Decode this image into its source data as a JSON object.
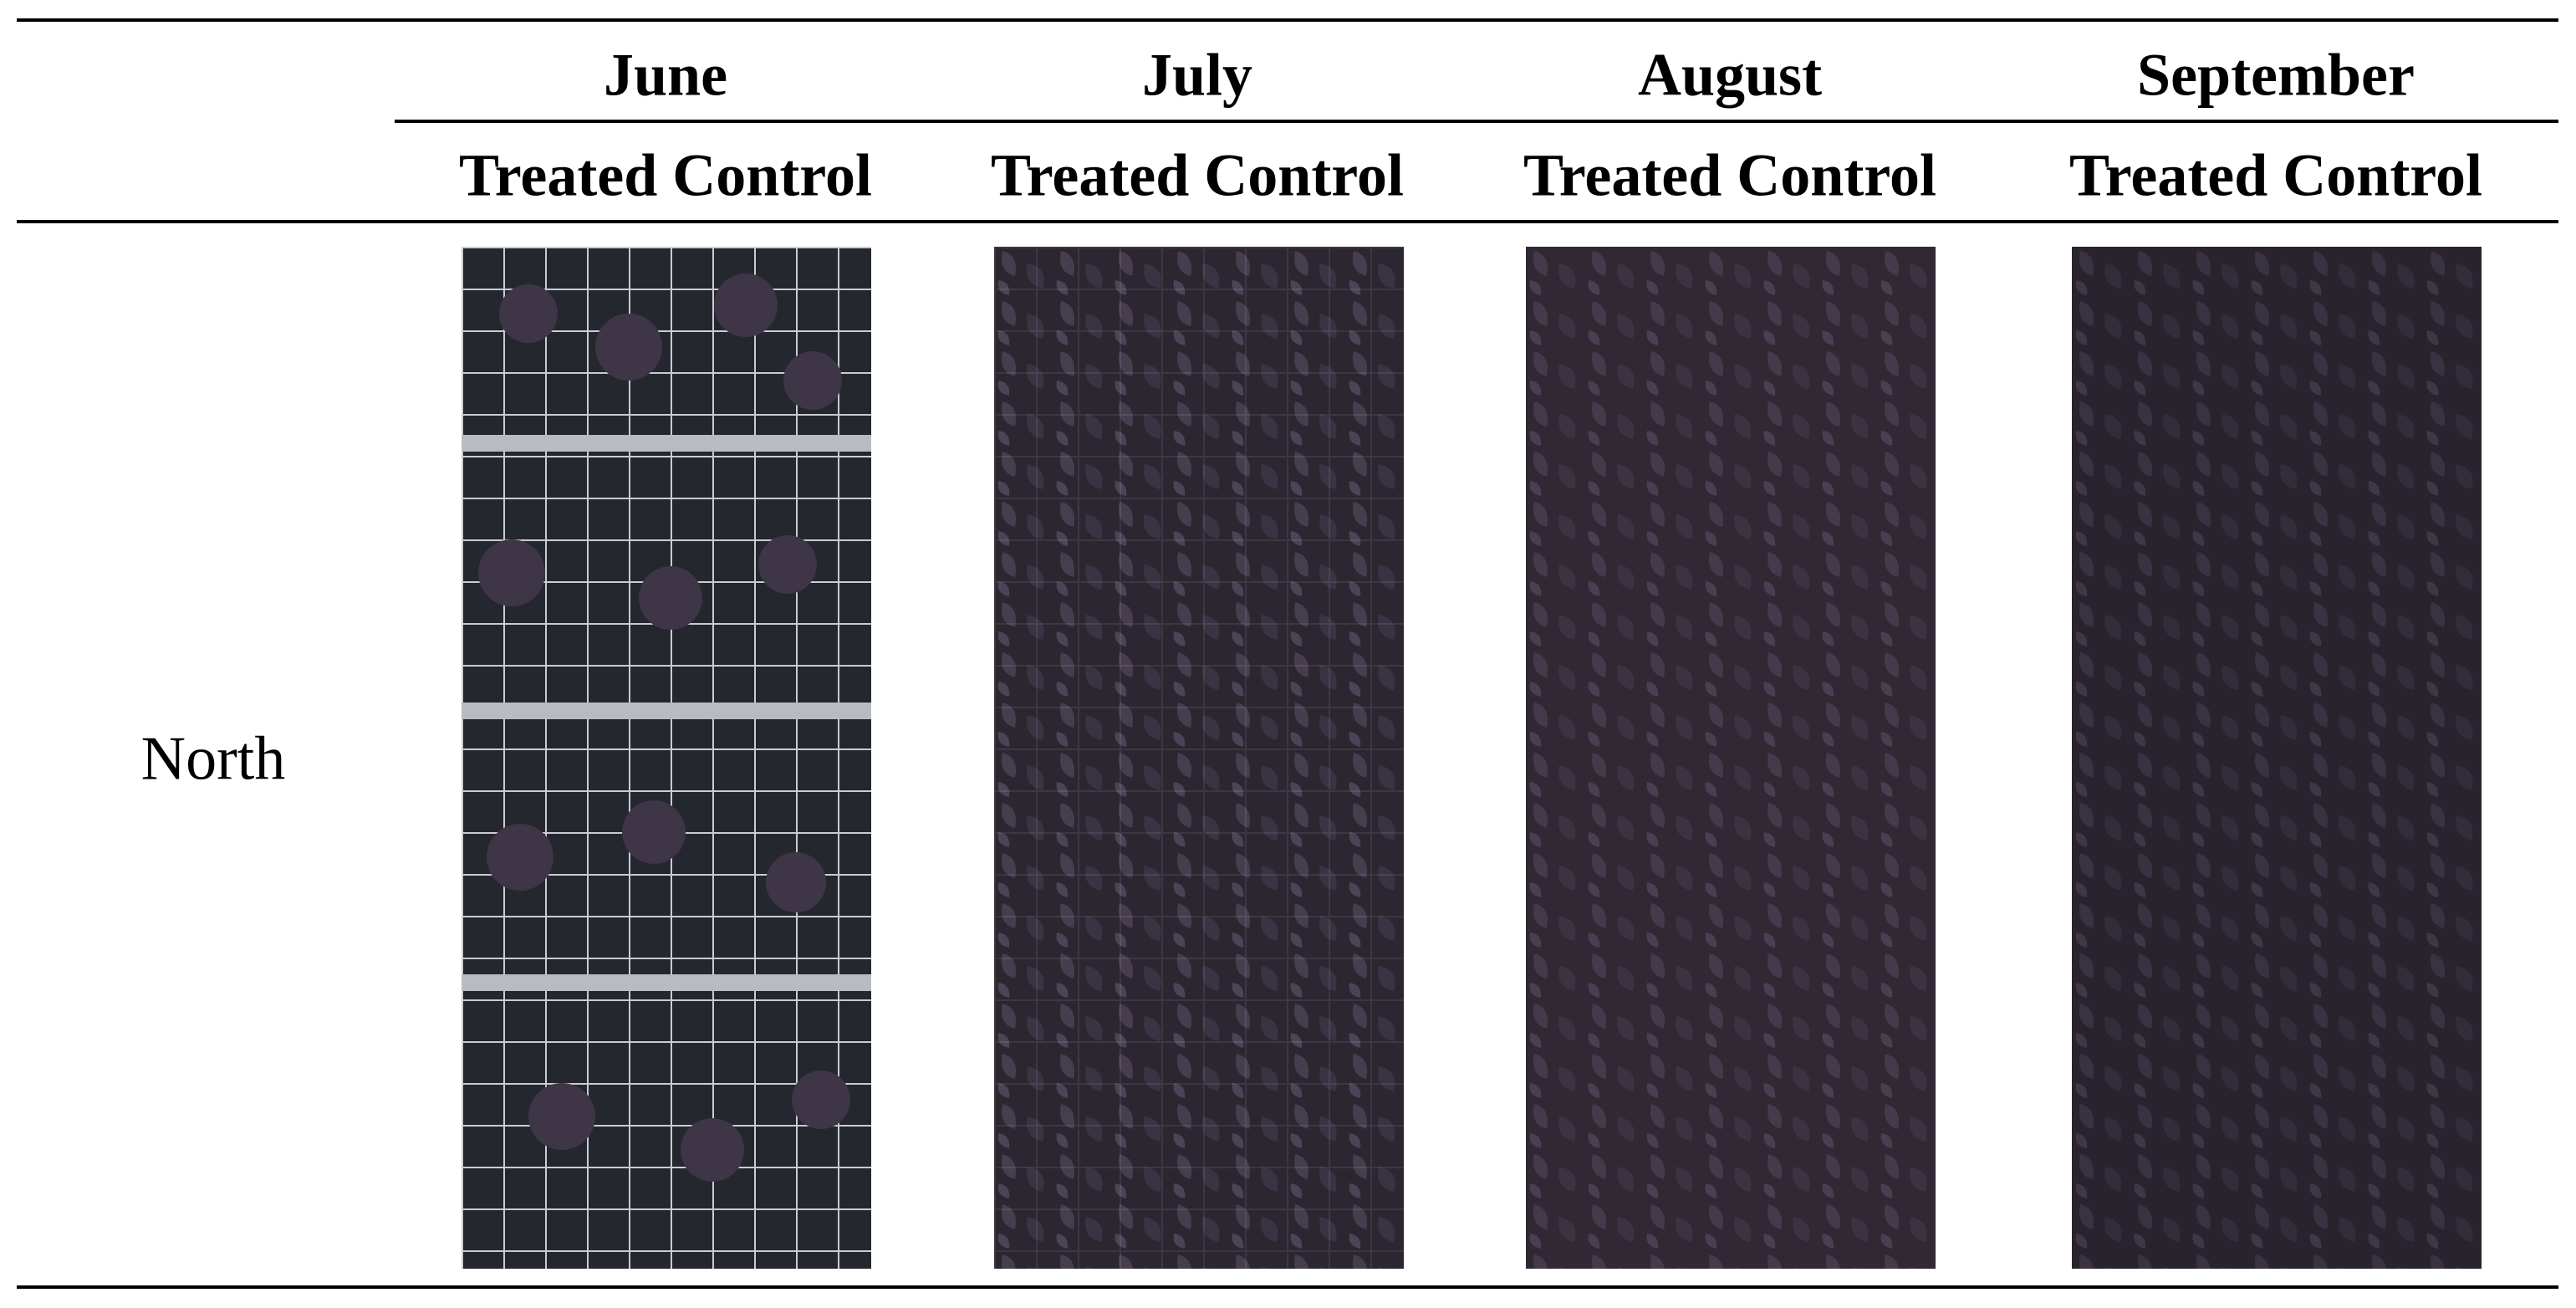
{
  "table": {
    "columns": [
      "June",
      "July",
      "August",
      "September"
    ],
    "subheaders": [
      "Treated Control",
      "Treated Control",
      "Treated Control",
      "Treated Control"
    ],
    "rows": [
      {
        "label": "North"
      }
    ]
  }
}
